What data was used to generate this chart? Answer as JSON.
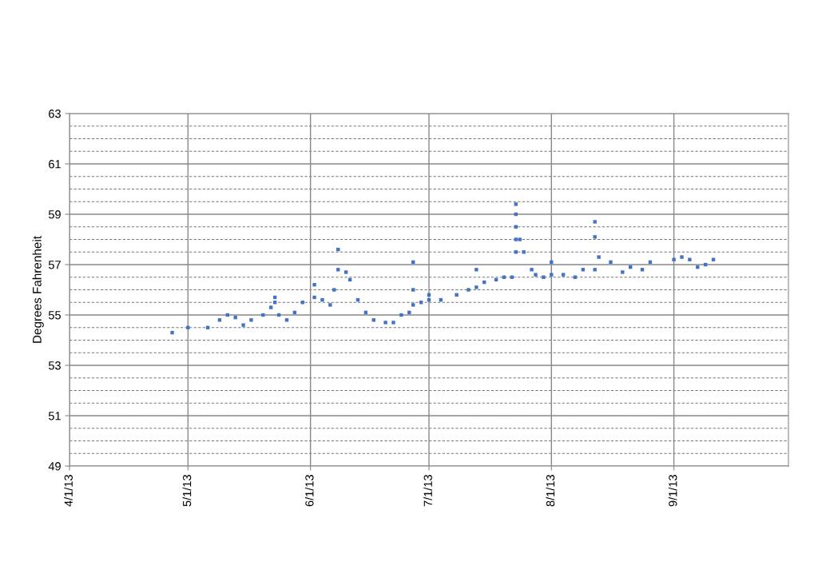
{
  "chart_data": {
    "type": "scatter",
    "ylabel": "Degrees Fahrenheit",
    "marker": "square",
    "grid": true,
    "xlim": [
      "2013-04-01",
      "2013-09-30"
    ],
    "xticks": [
      {
        "value": "2013-04-01",
        "label": "4/1/13"
      },
      {
        "value": "2013-05-01",
        "label": "5/1/13"
      },
      {
        "value": "2013-06-01",
        "label": "6/1/13"
      },
      {
        "value": "2013-07-01",
        "label": "7/1/13"
      },
      {
        "value": "2013-08-01",
        "label": "8/1/13"
      },
      {
        "value": "2013-09-01",
        "label": "9/1/13"
      }
    ],
    "ylim": [
      49,
      63
    ],
    "yticks": [
      49,
      {
        "value": 49.5,
        "label": null
      },
      {
        "value": 50,
        "label": null
      },
      {
        "value": 50.5,
        "label": null
      },
      51,
      {
        "value": 51.5,
        "label": null
      },
      {
        "value": 52,
        "label": null
      },
      {
        "value": 52.5,
        "label": null
      },
      53,
      {
        "value": 53.5,
        "label": null
      },
      {
        "value": 54,
        "label": null
      },
      {
        "value": 54.5,
        "label": null
      },
      55,
      {
        "value": 55.5,
        "label": null
      },
      {
        "value": 56,
        "label": null
      },
      {
        "value": 56.5,
        "label": null
      },
      57,
      {
        "value": 57.5,
        "label": null
      },
      {
        "value": 58,
        "label": null
      },
      {
        "value": 58.5,
        "label": null
      },
      59,
      {
        "value": 59.5,
        "label": null
      },
      {
        "value": 60,
        "label": null
      },
      {
        "value": 60.5,
        "label": null
      },
      61,
      {
        "value": 61.5,
        "label": null
      },
      {
        "value": 62,
        "label": null
      },
      {
        "value": 62.5,
        "label": null
      },
      63
    ],
    "series": [
      {
        "color": "#4472c4",
        "x": [
          "2013-04-27",
          "2013-05-01",
          "2013-05-06",
          "2013-05-09",
          "2013-05-11",
          "2013-05-13",
          "2013-05-15",
          "2013-05-17",
          "2013-05-20",
          "2013-05-22",
          "2013-05-23",
          "2013-05-23",
          "2013-05-24",
          "2013-05-26",
          "2013-05-28",
          "2013-05-30",
          "2013-06-02",
          "2013-06-02",
          "2013-06-04",
          "2013-06-06",
          "2013-06-07",
          "2013-06-08",
          "2013-06-08",
          "2013-06-10",
          "2013-06-11",
          "2013-06-13",
          "2013-06-15",
          "2013-06-17",
          "2013-06-20",
          "2013-06-22",
          "2013-06-24",
          "2013-06-26",
          "2013-06-27",
          "2013-06-27",
          "2013-06-27",
          "2013-06-29",
          "2013-07-01",
          "2013-07-01",
          "2013-07-04",
          "2013-07-08",
          "2013-07-11",
          "2013-07-13",
          "2013-07-13",
          "2013-07-15",
          "2013-07-18",
          "2013-07-20",
          "2013-07-22",
          "2013-07-23",
          "2013-07-23",
          "2013-07-23",
          "2013-07-23",
          "2013-07-23",
          "2013-07-24",
          "2013-07-25",
          "2013-07-27",
          "2013-07-28",
          "2013-07-30",
          "2013-08-01",
          "2013-08-01",
          "2013-08-04",
          "2013-08-07",
          "2013-08-09",
          "2013-08-12",
          "2013-08-12",
          "2013-08-12",
          "2013-08-13",
          "2013-08-16",
          "2013-08-19",
          "2013-08-21",
          "2013-08-24",
          "2013-08-26",
          "2013-09-01",
          "2013-09-03",
          "2013-09-05",
          "2013-09-07",
          "2013-09-09",
          "2013-09-11"
        ],
        "values": [
          54.3,
          54.5,
          54.5,
          54.8,
          55.0,
          54.9,
          54.6,
          54.8,
          55.0,
          55.3,
          55.5,
          55.7,
          55.0,
          54.8,
          55.1,
          55.5,
          55.7,
          56.2,
          55.6,
          55.4,
          56.0,
          56.8,
          57.6,
          56.7,
          56.4,
          55.6,
          55.1,
          54.8,
          54.7,
          54.7,
          55.0,
          55.1,
          55.4,
          56.0,
          57.1,
          55.5,
          55.6,
          55.8,
          55.6,
          55.8,
          56.0,
          56.1,
          56.8,
          56.3,
          56.4,
          56.5,
          56.5,
          59.4,
          59.0,
          58.5,
          58.0,
          57.5,
          58.0,
          57.5,
          56.8,
          56.6,
          56.5,
          56.6,
          57.1,
          56.6,
          56.5,
          56.8,
          56.8,
          58.7,
          58.1,
          57.3,
          57.1,
          56.7,
          56.9,
          56.8,
          57.1,
          57.2,
          57.3,
          57.2,
          56.9,
          57.0,
          57.2
        ]
      }
    ]
  }
}
